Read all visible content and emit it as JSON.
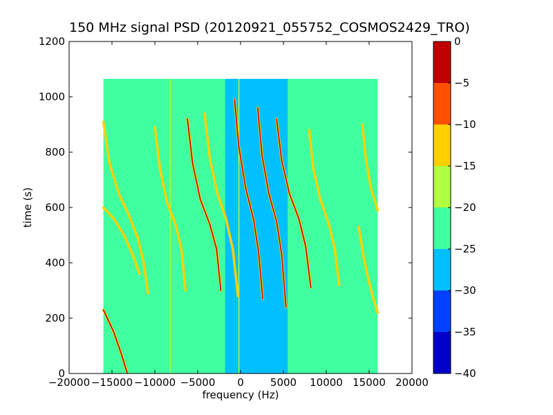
{
  "chart_data": {
    "type": "heatmap",
    "title": "150 MHz signal PSD (20120921_055752_COSMOS2429_TRO)",
    "xlabel": "frequency (Hz)",
    "ylabel": "time (s)",
    "xlim": [
      -20000,
      20000
    ],
    "ylim": [
      0,
      1200
    ],
    "x_ticks": [
      "−20000",
      "−15000",
      "−10000",
      "−5000",
      "0",
      "5000",
      "10000",
      "15000",
      "20000"
    ],
    "x_tick_values": [
      -20000,
      -15000,
      -10000,
      -5000,
      0,
      5000,
      10000,
      15000,
      20000
    ],
    "y_ticks": [
      "0",
      "200",
      "400",
      "600",
      "800",
      "1000",
      "1200"
    ],
    "y_tick_values": [
      0,
      200,
      400,
      600,
      800,
      1000,
      1200
    ],
    "data_extent": {
      "x": [
        -16000,
        16000
      ],
      "y": [
        0,
        1065
      ]
    },
    "background_level": -22.5,
    "central_band": {
      "x": [
        -1800,
        5500
      ],
      "level": -27.5
    },
    "grid": false,
    "colorbar": {
      "min": -40,
      "max": 0,
      "ticks": [
        "0",
        "−5",
        "−10",
        "−15",
        "−20",
        "−25",
        "−30",
        "−35",
        "−40"
      ],
      "tick_values": [
        0,
        -5,
        -10,
        -15,
        -20,
        -25,
        -30,
        -35,
        -40
      ],
      "colors": [
        "#0000c8",
        "#0040ff",
        "#00c0ff",
        "#40ffa0",
        "#b0ff40",
        "#ffd000",
        "#ff5000",
        "#c00000"
      ]
    },
    "vertical_lines": [
      {
        "x": -8200,
        "y": [
          0,
          1065
        ],
        "level": -17.5
      },
      {
        "x": -200,
        "y": [
          0,
          1065
        ],
        "level": -17.5
      }
    ],
    "traces": [
      {
        "x": [
          -16000,
          -14800,
          -13900,
          -13200
        ],
        "y": [
          230,
          150,
          70,
          0
        ],
        "level": -2.5
      },
      {
        "x": [
          -16000,
          -15300,
          -14200,
          -13000,
          -12000,
          -11300,
          -10800
        ],
        "y": [
          910,
          760,
          650,
          570,
          490,
          400,
          290
        ],
        "level": -12.5
      },
      {
        "x": [
          -16000,
          -14800,
          -13600,
          -12600,
          -11800
        ],
        "y": [
          600,
          560,
          500,
          430,
          360
        ],
        "level": -12.5
      },
      {
        "x": [
          -10000,
          -9400,
          -8600,
          -7600,
          -6900,
          -6400
        ],
        "y": [
          890,
          740,
          620,
          540,
          450,
          300
        ],
        "level": -12.5
      },
      {
        "x": [
          -6200,
          -5600,
          -4700,
          -3600,
          -2800,
          -2300
        ],
        "y": [
          920,
          760,
          630,
          540,
          450,
          300
        ],
        "level": -2.5
      },
      {
        "x": [
          -4200,
          -3600,
          -2700,
          -1700,
          -900,
          -300
        ],
        "y": [
          940,
          780,
          650,
          560,
          450,
          280
        ],
        "level": -12.5
      },
      {
        "x": [
          -700,
          -200,
          600,
          1500,
          2100,
          2600
        ],
        "y": [
          990,
          820,
          670,
          560,
          440,
          270
        ],
        "level": -2.5
      },
      {
        "x": [
          2000,
          2500,
          3300,
          4200,
          4800,
          5300
        ],
        "y": [
          960,
          790,
          650,
          550,
          430,
          240
        ],
        "level": -2.5
      },
      {
        "x": [
          4200,
          4800,
          5700,
          6800,
          7600,
          8200
        ],
        "y": [
          920,
          770,
          650,
          560,
          460,
          310
        ],
        "level": -2.5
      },
      {
        "x": [
          8000,
          8500,
          9300,
          10300,
          11000,
          11500
        ],
        "y": [
          880,
          740,
          630,
          540,
          450,
          320
        ],
        "level": -12.5
      },
      {
        "x": [
          13800,
          14300,
          14900,
          15500,
          16000
        ],
        "y": [
          530,
          430,
          340,
          270,
          220
        ],
        "level": -12.5
      },
      {
        "x": [
          14200,
          14600,
          15200,
          16000
        ],
        "y": [
          900,
          780,
          670,
          590
        ],
        "level": -12.5
      }
    ]
  }
}
